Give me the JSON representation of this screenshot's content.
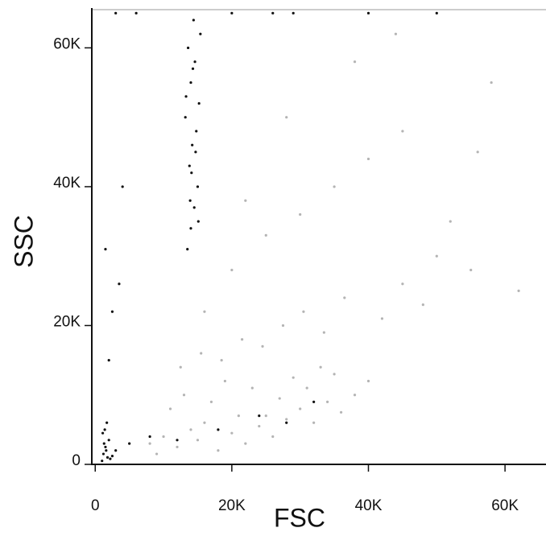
{
  "chart_data": {
    "type": "scatter",
    "xlabel": "FSC",
    "ylabel": "SSC",
    "xlim": [
      -500,
      66000
    ],
    "ylim": [
      0,
      65500
    ],
    "xticks": [
      0,
      {
        "value": 20000,
        "label": "20K"
      },
      {
        "value": 40000,
        "label": "40K"
      },
      {
        "value": 60000,
        "label": "60K"
      }
    ],
    "yticks": [
      0,
      {
        "value": 20000,
        "label": "20K"
      },
      {
        "value": 40000,
        "label": "40K"
      },
      {
        "value": 60000,
        "label": "60K"
      }
    ],
    "series": [
      {
        "color": "#b4b4b4",
        "x": [
          8000,
          10000,
          12000,
          14000,
          15000,
          16000,
          18000,
          20000,
          22000,
          24000,
          25000,
          26000,
          28000,
          30000,
          32000,
          34000,
          36000,
          38000,
          40000,
          11000,
          13000,
          17000,
          19000,
          21000,
          23000,
          27000,
          29000,
          31000,
          33000,
          35000,
          9000,
          12500,
          15500,
          18500,
          21500,
          24500,
          27500,
          30500,
          33500,
          36500,
          42000,
          45000,
          48000,
          50000,
          55000,
          20000,
          25000,
          30000,
          35000,
          40000,
          45000,
          52000,
          58000,
          62000,
          16000,
          22000,
          28000,
          38000,
          44000,
          56000
        ],
        "values": [
          3000,
          4000,
          2500,
          5000,
          3500,
          6000,
          2000,
          4500,
          3000,
          5500,
          7000,
          4000,
          6500,
          8000,
          6000,
          9000,
          7500,
          10000,
          12000,
          8000,
          10000,
          9000,
          12000,
          7000,
          11000,
          9500,
          12500,
          11000,
          14000,
          13000,
          1500,
          14000,
          16000,
          15000,
          18000,
          17000,
          20000,
          22000,
          19000,
          24000,
          21000,
          26000,
          23000,
          30000,
          28000,
          28000,
          33000,
          36000,
          40000,
          44000,
          48000,
          35000,
          55000,
          25000,
          22000,
          38000,
          50000,
          58000,
          62000,
          45000
        ]
      },
      {
        "color": "#111111",
        "x": [
          13500,
          14000,
          14500,
          15000,
          13800,
          14200,
          14800,
          13200,
          15200,
          14000,
          14600,
          13600,
          15400,
          14400,
          13900,
          14100,
          14700,
          13300,
          15100,
          14300,
          1000,
          1200,
          1500,
          1800,
          2000,
          1100,
          1300,
          1600,
          2200,
          2500,
          1400,
          1700,
          3000,
          5000,
          8000,
          12000,
          18000,
          24000,
          28000,
          32000,
          2000,
          2500,
          3500,
          1500,
          4000,
          3000,
          6000,
          20000,
          26000,
          29000,
          40000,
          50000
        ],
        "values": [
          31000,
          34000,
          37000,
          40000,
          43000,
          46000,
          48000,
          50000,
          52000,
          55000,
          58000,
          60000,
          62000,
          64000,
          38000,
          42000,
          45000,
          53000,
          35000,
          57000,
          500,
          1500,
          2500,
          1000,
          3500,
          4500,
          3000,
          2000,
          800,
          1200,
          5000,
          6000,
          2000,
          3000,
          4000,
          3500,
          5000,
          7000,
          6000,
          9000,
          15000,
          22000,
          26000,
          31000,
          40000,
          65000,
          65000,
          65000,
          65000,
          65000,
          65000,
          65000
        ]
      }
    ]
  }
}
